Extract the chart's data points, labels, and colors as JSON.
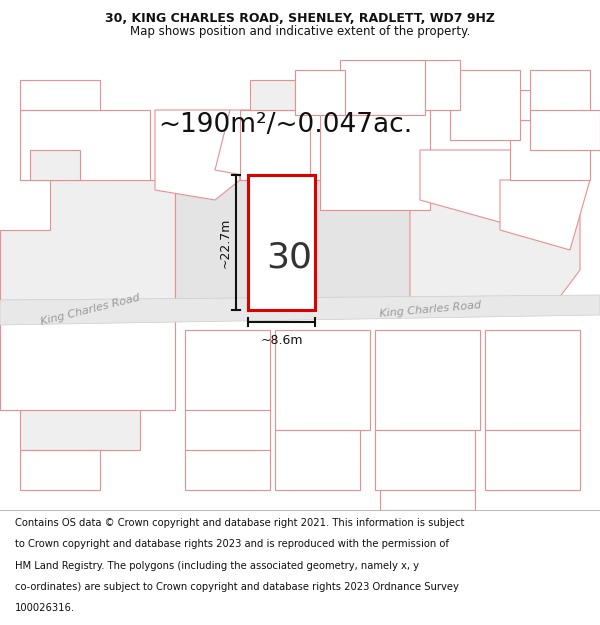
{
  "title_line1": "30, KING CHARLES ROAD, SHENLEY, RADLETT, WD7 9HZ",
  "title_line2": "Map shows position and indicative extent of the property.",
  "area_text": "~190m²/~0.047ac.",
  "property_number": "30",
  "dim_height": "~22.7m",
  "dim_width": "~8.6m",
  "road_name_left": "King Charles Road",
  "road_name_right": "King Charles Road",
  "map_bg": "#ffffff",
  "polygon_fill_white": "#ffffff",
  "polygon_fill_light": "#efefef",
  "polygon_fill_mid": "#e4e4e4",
  "polygon_edge": "#e89090",
  "property_edge": "#dd0000",
  "property_fill": "#ffffff",
  "road_fill": "#e8e8e8",
  "road_edge": "#cccccc",
  "title_fontsize": 9,
  "footer_fontsize": 7.2,
  "area_fontsize": 19,
  "number_fontsize": 26,
  "dim_fontsize": 9,
  "road_fontsize": 8
}
